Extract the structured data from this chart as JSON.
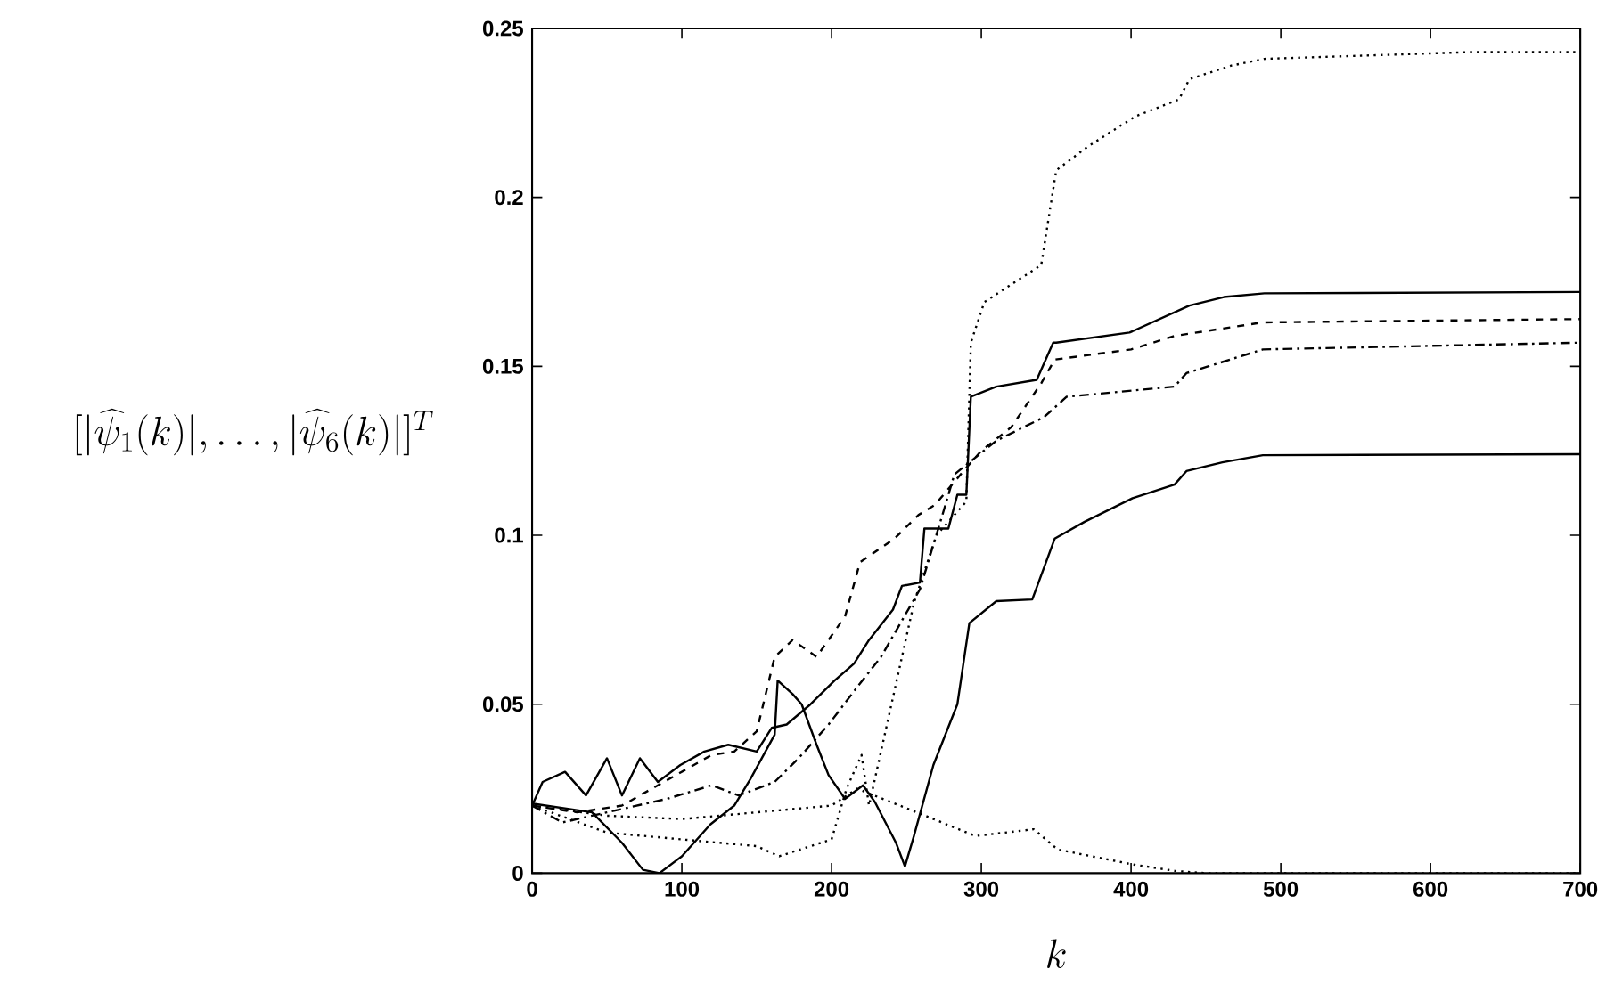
{
  "chart_data": {
    "type": "line",
    "xlabel": "k",
    "ylabel": "[|\\widehat{\\psi}_1(k)|,\\ldots,|\\widehat{\\psi}_6(k)|]^T",
    "xlim": [
      0,
      700
    ],
    "ylim": [
      0,
      0.25
    ],
    "xticks": [
      0,
      100,
      200,
      300,
      400,
      500,
      600,
      700
    ],
    "yticks": [
      0,
      0.05,
      0.1,
      0.15,
      0.2,
      0.25
    ],
    "grid": false,
    "series": [
      {
        "color": "#000000",
        "line_style": "solid",
        "x": [
          0,
          7,
          22,
          36,
          50,
          60,
          72,
          84,
          99,
          115,
          131,
          150,
          160,
          170,
          186,
          202,
          215,
          225,
          241,
          247,
          259,
          262,
          278,
          284,
          290,
          293,
          310,
          337,
          348,
          350,
          399,
          439,
          462,
          489,
          700
        ],
        "values": [
          0.02,
          0.027,
          0.03,
          0.023,
          0.034,
          0.023,
          0.034,
          0.027,
          0.032,
          0.036,
          0.038,
          0.036,
          0.043,
          0.044,
          0.05,
          0.057,
          0.062,
          0.069,
          0.078,
          0.085,
          0.086,
          0.102,
          0.102,
          0.112,
          0.112,
          0.141,
          0.144,
          0.146,
          0.157,
          0.157,
          0.16,
          0.168,
          0.1705,
          0.1716,
          0.172
        ]
      },
      {
        "color": "#000000",
        "line_style": "dashed",
        "x": [
          0,
          30,
          60,
          80,
          100,
          120,
          135,
          150,
          162,
          174,
          190,
          209,
          219,
          242,
          258,
          269,
          290,
          300,
          320,
          340,
          349,
          400,
          429,
          488,
          700
        ],
        "values": [
          0.02,
          0.018,
          0.02,
          0.025,
          0.03,
          0.035,
          0.036,
          0.042,
          0.064,
          0.069,
          0.064,
          0.076,
          0.092,
          0.099,
          0.106,
          0.109,
          0.12,
          0.125,
          0.132,
          0.145,
          0.152,
          0.155,
          0.159,
          0.163,
          0.164
        ]
      },
      {
        "color": "#000000",
        "line_style": "dashdot",
        "x": [
          0,
          20,
          50,
          90,
          120,
          138,
          162,
          178,
          198,
          217,
          233,
          259,
          274,
          282,
          310,
          342,
          357,
          429,
          437,
          488,
          700
        ],
        "values": [
          0.02,
          0.015,
          0.018,
          0.022,
          0.026,
          0.023,
          0.027,
          0.034,
          0.044,
          0.055,
          0.064,
          0.084,
          0.106,
          0.118,
          0.128,
          0.135,
          0.141,
          0.144,
          0.148,
          0.155,
          0.157
        ]
      },
      {
        "color": "#000000",
        "line_style": "solid",
        "x": [
          0,
          40,
          60,
          74,
          85,
          100,
          119,
          135,
          146,
          162,
          164,
          174,
          180,
          190,
          198,
          209,
          221,
          229,
          243,
          249,
          255,
          268,
          284,
          292,
          310,
          334,
          349,
          369,
          401,
          429,
          437,
          461,
          488,
          700
        ],
        "values": [
          0.0206,
          0.018,
          0.009,
          0.001,
          0,
          0.005,
          0.0144,
          0.02,
          0.028,
          0.041,
          0.057,
          0.053,
          0.05,
          0.038,
          0.029,
          0.022,
          0.026,
          0.021,
          0.009,
          0.002,
          0.011,
          0.032,
          0.05,
          0.074,
          0.0805,
          0.081,
          0.099,
          0.104,
          0.111,
          0.115,
          0.119,
          0.1216,
          0.1237,
          0.124
        ]
      },
      {
        "color": "#000000",
        "line_style": "dotted",
        "x": [
          0,
          50,
          100,
          150,
          165,
          200,
          210,
          220,
          225,
          240,
          255,
          270,
          290,
          293,
          302,
          340,
          350,
          371,
          403,
          432,
          439,
          467,
          489,
          627,
          700
        ],
        "values": [
          0.02,
          0.012,
          0.01,
          0.008,
          0.005,
          0.01,
          0.025,
          0.035,
          0.02,
          0.05,
          0.08,
          0.1,
          0.11,
          0.157,
          0.169,
          0.18,
          0.208,
          0.215,
          0.224,
          0.229,
          0.235,
          0.239,
          0.241,
          0.243,
          0.243
        ]
      },
      {
        "color": "#000000",
        "line_style": "dotted",
        "x": [
          0,
          50,
          100,
          150,
          200,
          217,
          257,
          296,
          335,
          351,
          401,
          429,
          450,
          700
        ],
        "values": [
          0.02,
          0.017,
          0.016,
          0.018,
          0.02,
          0.025,
          0.018,
          0.011,
          0.013,
          0.007,
          0.0026,
          0.0007,
          0,
          0
        ]
      }
    ]
  }
}
